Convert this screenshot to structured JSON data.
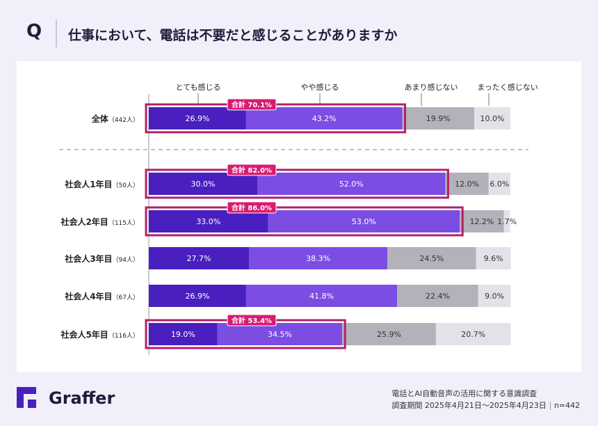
{
  "header": {
    "q": "Q",
    "title": "仕事において、電話は不要だと感じることがありますか"
  },
  "chart_data": {
    "type": "bar",
    "orientation": "horizontal-stacked-100",
    "legend": [
      "とても感じる",
      "やや感じる",
      "あまり感じない",
      "まったく感じない"
    ],
    "colors": [
      "#4a1fbf",
      "#7b4de3",
      "#b3b1ba",
      "#e3e2e8"
    ],
    "highlight_color": "#b0206a",
    "categories": [
      {
        "label": "全体",
        "n": "（442人）"
      },
      {
        "label": "社会人1年目",
        "n": "（50人）"
      },
      {
        "label": "社会人2年目",
        "n": "（115人）"
      },
      {
        "label": "社会人3年目",
        "n": "（94人）"
      },
      {
        "label": "社会人4年目",
        "n": "（67人）"
      },
      {
        "label": "社会人5年目",
        "n": "（116人）"
      }
    ],
    "values": [
      [
        26.9,
        43.2,
        19.9,
        10.0
      ],
      [
        30.0,
        52.0,
        12.0,
        6.0
      ],
      [
        33.0,
        53.0,
        12.2,
        1.7
      ],
      [
        27.7,
        38.3,
        24.5,
        9.6
      ],
      [
        26.9,
        41.8,
        22.4,
        9.0
      ],
      [
        19.0,
        34.5,
        25.9,
        20.7
      ]
    ],
    "totals": [
      "合計 70.1%",
      "合計 82.0%",
      "合計 86.0%",
      null,
      null,
      "合計 53.4%"
    ]
  },
  "footer": {
    "brand": "Graffer",
    "survey": "電話とAI自動音声の活用に関する意識調査",
    "period": "調査期間 2025年4月21日〜2025年4月23日",
    "n": "n=442"
  }
}
